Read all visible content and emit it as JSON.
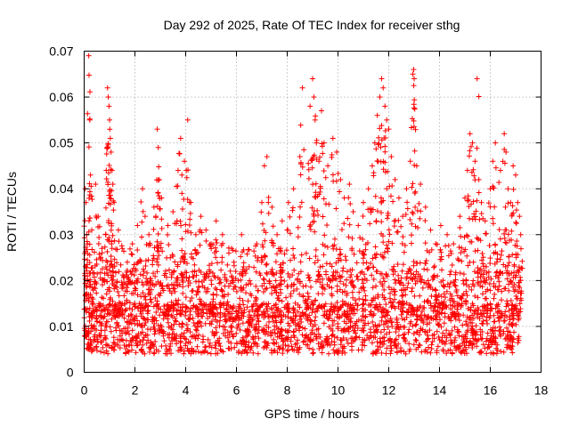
{
  "chart_data": {
    "type": "scatter",
    "title": "Day 292 of 2025, Rate Of TEC Index for receiver sthg",
    "xlabel": "GPS time / hours",
    "ylabel": "ROTI / TECUs",
    "xlim": [
      0,
      18
    ],
    "ylim": [
      0,
      0.07
    ],
    "x_ticks": [
      "0",
      "2",
      "4",
      "6",
      "8",
      "10",
      "12",
      "14",
      "16",
      "18"
    ],
    "y_ticks": [
      "0",
      "0.01",
      "0.02",
      "0.03",
      "0.04",
      "0.05",
      "0.06",
      "0.07"
    ],
    "grid": true,
    "marker": "+",
    "color": "#ff0000",
    "series": [
      {
        "name": "ROTI",
        "points": [
          [
            0.04,
            0.04
          ],
          [
            0.07,
            0.037
          ],
          [
            0.1,
            0.03
          ],
          [
            0.13,
            0.028
          ],
          [
            0.18,
            0.069
          ],
          [
            0.22,
            0.055
          ],
          [
            0.25,
            0.043
          ],
          [
            0.3,
            0.031
          ],
          [
            0.45,
            0.041
          ],
          [
            0.55,
            0.034
          ],
          [
            0.7,
            0.027
          ],
          [
            0.85,
            0.03
          ],
          [
            0.92,
            0.062
          ],
          [
            0.95,
            0.06
          ],
          [
            0.98,
            0.058
          ],
          [
            1.0,
            0.055
          ],
          [
            1.03,
            0.051
          ],
          [
            1.06,
            0.048
          ],
          [
            1.1,
            0.044
          ],
          [
            1.13,
            0.041
          ],
          [
            1.18,
            0.037
          ],
          [
            1.35,
            0.031
          ],
          [
            1.5,
            0.027
          ],
          [
            1.7,
            0.024
          ],
          [
            1.9,
            0.028
          ],
          [
            2.1,
            0.032
          ],
          [
            2.3,
            0.04
          ],
          [
            2.4,
            0.034
          ],
          [
            2.55,
            0.03
          ],
          [
            2.75,
            0.036
          ],
          [
            2.88,
            0.053
          ],
          [
            2.92,
            0.049
          ],
          [
            2.96,
            0.042
          ],
          [
            3.05,
            0.038
          ],
          [
            3.3,
            0.032
          ],
          [
            3.5,
            0.035
          ],
          [
            3.7,
            0.044
          ],
          [
            3.8,
            0.051
          ],
          [
            3.85,
            0.043
          ],
          [
            3.95,
            0.046
          ],
          [
            4.08,
            0.055
          ],
          [
            4.2,
            0.037
          ],
          [
            4.4,
            0.03
          ],
          [
            4.6,
            0.034
          ],
          [
            4.8,
            0.031
          ],
          [
            5.0,
            0.028
          ],
          [
            5.2,
            0.033
          ],
          [
            5.45,
            0.03
          ],
          [
            5.7,
            0.026
          ],
          [
            5.9,
            0.024
          ],
          [
            6.2,
            0.03
          ],
          [
            6.5,
            0.023
          ],
          [
            6.8,
            0.028
          ],
          [
            7.0,
            0.037
          ],
          [
            7.1,
            0.045
          ],
          [
            7.2,
            0.047
          ],
          [
            7.4,
            0.036
          ],
          [
            7.6,
            0.03
          ],
          [
            7.8,
            0.033
          ],
          [
            8.05,
            0.037
          ],
          [
            8.25,
            0.04
          ],
          [
            8.5,
            0.047
          ],
          [
            8.6,
            0.062
          ],
          [
            8.9,
            0.058
          ],
          [
            9.0,
            0.064
          ],
          [
            9.05,
            0.06
          ],
          [
            9.1,
            0.055
          ],
          [
            9.15,
            0.05
          ],
          [
            9.25,
            0.046
          ],
          [
            9.35,
            0.057
          ],
          [
            9.45,
            0.05
          ],
          [
            9.6,
            0.045
          ],
          [
            9.8,
            0.051
          ],
          [
            9.95,
            0.048
          ],
          [
            10.1,
            0.042
          ],
          [
            10.25,
            0.038
          ],
          [
            10.45,
            0.041
          ],
          [
            10.6,
            0.035
          ],
          [
            10.8,
            0.032
          ],
          [
            11.0,
            0.037
          ],
          [
            11.2,
            0.04
          ],
          [
            11.35,
            0.045
          ],
          [
            11.45,
            0.05
          ],
          [
            11.55,
            0.056
          ],
          [
            11.65,
            0.06
          ],
          [
            11.72,
            0.064
          ],
          [
            11.78,
            0.062
          ],
          [
            11.85,
            0.058
          ],
          [
            11.92,
            0.055
          ],
          [
            12.0,
            0.053
          ],
          [
            12.1,
            0.047
          ],
          [
            12.25,
            0.042
          ],
          [
            12.4,
            0.038
          ],
          [
            12.55,
            0.034
          ],
          [
            12.7,
            0.04
          ],
          [
            12.85,
            0.046
          ],
          [
            12.95,
            0.065
          ],
          [
            12.98,
            0.066
          ],
          [
            13.0,
            0.064
          ],
          [
            13.1,
            0.045
          ],
          [
            13.25,
            0.041
          ],
          [
            13.45,
            0.036
          ],
          [
            13.65,
            0.031
          ],
          [
            13.85,
            0.028
          ],
          [
            14.05,
            0.032
          ],
          [
            14.3,
            0.03
          ],
          [
            14.55,
            0.028
          ],
          [
            14.8,
            0.034
          ],
          [
            15.0,
            0.038
          ],
          [
            15.1,
            0.044
          ],
          [
            15.2,
            0.052
          ],
          [
            15.3,
            0.05
          ],
          [
            15.4,
            0.046
          ],
          [
            15.48,
            0.064
          ],
          [
            15.55,
            0.042
          ],
          [
            15.65,
            0.037
          ],
          [
            15.8,
            0.033
          ],
          [
            16.0,
            0.04
          ],
          [
            16.1,
            0.046
          ],
          [
            16.2,
            0.05
          ],
          [
            16.4,
            0.044
          ],
          [
            16.55,
            0.052
          ],
          [
            16.62,
            0.048
          ],
          [
            16.7,
            0.04
          ],
          [
            16.8,
            0.037
          ],
          [
            16.9,
            0.045
          ],
          [
            17.0,
            0.043
          ],
          [
            17.08,
            0.037
          ],
          [
            17.15,
            0.034
          ],
          [
            17.2,
            0.03
          ]
        ],
        "dense_band": {
          "x_range": [
            0.0,
            17.2
          ],
          "y_range": [
            0.001,
            0.028
          ],
          "note": "dense cloud of points across the full time range, most concentrated between 0.004 and 0.015"
        }
      }
    ]
  }
}
